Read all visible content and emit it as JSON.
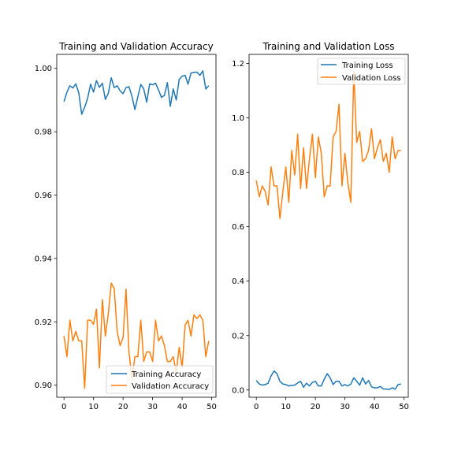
{
  "chart_data": [
    {
      "type": "line",
      "title": "Training and Validation Accuracy",
      "xlabel": "",
      "ylabel": "",
      "xlim": [
        -2.45,
        51.45
      ],
      "ylim": [
        0.8962,
        1.0044
      ],
      "xticks": [
        0,
        10,
        20,
        30,
        40,
        50
      ],
      "yticks": [
        0.9,
        0.92,
        0.94,
        0.96,
        0.98,
        1.0
      ],
      "ytick_labels": [
        "0.90",
        "0.92",
        "0.94",
        "0.96",
        "0.98",
        "1.00"
      ],
      "grid": false,
      "legend": "lower-right",
      "x": [
        0,
        1,
        2,
        3,
        4,
        5,
        6,
        7,
        8,
        9,
        10,
        11,
        12,
        13,
        14,
        15,
        16,
        17,
        18,
        19,
        20,
        21,
        22,
        23,
        24,
        25,
        26,
        27,
        28,
        29,
        30,
        31,
        32,
        33,
        34,
        35,
        36,
        37,
        38,
        39,
        40,
        41,
        42,
        43,
        44,
        45,
        46,
        47,
        48,
        49
      ],
      "series": [
        {
          "name": "Training Accuracy",
          "color": "#1f77b4",
          "values": [
            0.9895,
            0.9925,
            0.9945,
            0.9938,
            0.9951,
            0.9923,
            0.9855,
            0.9877,
            0.9905,
            0.995,
            0.9925,
            0.9961,
            0.994,
            0.9953,
            0.9902,
            0.9921,
            0.997,
            0.9939,
            0.9945,
            0.9929,
            0.992,
            0.9939,
            0.9942,
            0.9912,
            0.987,
            0.991,
            0.9949,
            0.9935,
            0.9893,
            0.9951,
            0.9948,
            0.9953,
            0.9932,
            0.9908,
            0.9915,
            0.9955,
            0.988,
            0.9935,
            0.99,
            0.9965,
            0.9975,
            0.9978,
            0.995,
            0.9985,
            0.9987,
            0.9988,
            0.9978,
            0.9992,
            0.9935,
            0.9945
          ]
        },
        {
          "name": "Validation Accuracy",
          "color": "#ff7f0e",
          "values": [
            0.9155,
            0.909,
            0.9205,
            0.914,
            0.917,
            0.914,
            0.914,
            0.899,
            0.9205,
            0.9205,
            0.9192,
            0.924,
            0.9055,
            0.927,
            0.9155,
            0.9225,
            0.9322,
            0.9305,
            0.917,
            0.9125,
            0.915,
            0.9303,
            0.9105,
            0.902,
            0.909,
            0.909,
            0.9205,
            0.9075,
            0.9105,
            0.9105,
            0.9075,
            0.9205,
            0.914,
            0.9155,
            0.9125,
            0.9075,
            0.9075,
            0.909,
            0.904,
            0.912,
            0.9055,
            0.919,
            0.9205,
            0.9155,
            0.9222,
            0.921,
            0.9222,
            0.9205,
            0.909,
            0.914
          ]
        }
      ]
    },
    {
      "type": "line",
      "title": "Training and Validation Loss",
      "xlabel": "",
      "ylabel": "",
      "xlim": [
        -2.45,
        51.45
      ],
      "ylim": [
        -0.0266,
        1.2333
      ],
      "xticks": [
        0,
        10,
        20,
        30,
        40,
        50
      ],
      "yticks": [
        0.0,
        0.2,
        0.4,
        0.6,
        0.8,
        1.0,
        1.2
      ],
      "ytick_labels": [
        "0.0",
        "0.2",
        "0.4",
        "0.6",
        "0.8",
        "1.0",
        "1.2"
      ],
      "grid": false,
      "legend": "top-right",
      "x": [
        0,
        1,
        2,
        3,
        4,
        5,
        6,
        7,
        8,
        9,
        10,
        11,
        12,
        13,
        14,
        15,
        16,
        17,
        18,
        19,
        20,
        21,
        22,
        23,
        24,
        25,
        26,
        27,
        28,
        29,
        30,
        31,
        32,
        33,
        34,
        35,
        36,
        37,
        38,
        39,
        40,
        41,
        42,
        43,
        44,
        45,
        46,
        47,
        48,
        49
      ],
      "series": [
        {
          "name": "Training Loss",
          "color": "#1f77b4",
          "values": [
            0.035,
            0.022,
            0.018,
            0.02,
            0.025,
            0.052,
            0.07,
            0.06,
            0.032,
            0.022,
            0.02,
            0.015,
            0.017,
            0.018,
            0.026,
            0.032,
            0.01,
            0.025,
            0.015,
            0.028,
            0.032,
            0.015,
            0.015,
            0.04,
            0.06,
            0.045,
            0.02,
            0.032,
            0.032,
            0.015,
            0.02,
            0.015,
            0.022,
            0.045,
            0.032,
            0.018,
            0.045,
            0.022,
            0.035,
            0.012,
            0.008,
            0.008,
            0.013,
            0.004,
            0.003,
            0.002,
            0.008,
            0.003,
            0.02,
            0.022
          ]
        },
        {
          "name": "Validation Loss",
          "color": "#ff7f0e",
          "values": [
            0.77,
            0.71,
            0.75,
            0.73,
            0.68,
            0.82,
            0.75,
            0.75,
            0.63,
            0.73,
            0.82,
            0.69,
            0.88,
            0.79,
            0.94,
            0.74,
            0.89,
            0.74,
            0.85,
            0.94,
            0.78,
            0.93,
            0.87,
            0.71,
            0.75,
            0.75,
            0.93,
            0.95,
            1.05,
            0.75,
            0.87,
            0.76,
            0.69,
            1.17,
            0.91,
            0.95,
            0.84,
            0.85,
            0.88,
            0.96,
            0.85,
            0.89,
            0.92,
            0.84,
            0.87,
            0.8,
            0.93,
            0.85,
            0.88,
            0.88
          ]
        }
      ]
    }
  ]
}
